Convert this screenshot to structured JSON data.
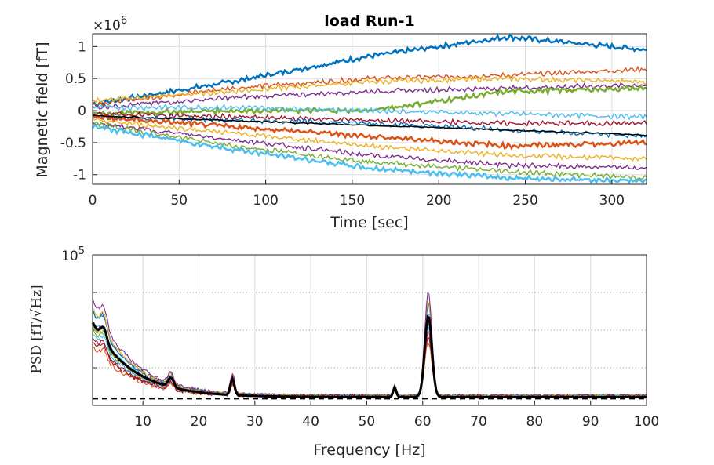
{
  "chart_data": [
    {
      "type": "line",
      "title": "load Run-1",
      "xlabel": "Time [sec]",
      "ylabel": "Magnetic field [fT]",
      "y_exponent_label": "×10",
      "y_exponent_power": "6",
      "xlim": [
        0,
        320
      ],
      "ylim": [
        -1.15,
        1.2
      ],
      "x_ticks": [
        "0",
        "50",
        "100",
        "150",
        "200",
        "250",
        "300"
      ],
      "y_ticks": [
        "-1",
        "-0.5",
        "0",
        "0.5",
        "1"
      ],
      "grid": true,
      "series_colors": [
        "#0072BD",
        "#D95319",
        "#EDB120",
        "#7E2F8E",
        "#77AC30",
        "#4DBEEE",
        "#A2142F",
        "#000000"
      ],
      "series": [
        {
          "x": [
            0,
            80,
            160,
            240,
            320
          ],
          "values": [
            0.1,
            0.45,
            0.85,
            1.15,
            0.95
          ]
        },
        {
          "x": [
            0,
            80,
            160,
            240,
            320
          ],
          "values": [
            0.1,
            0.35,
            0.5,
            0.55,
            0.65
          ]
        },
        {
          "x": [
            0,
            80,
            160,
            240,
            320
          ],
          "values": [
            0.15,
            0.3,
            0.45,
            0.5,
            0.45
          ]
        },
        {
          "x": [
            0,
            80,
            160,
            240,
            320
          ],
          "values": [
            0.05,
            0.2,
            0.3,
            0.35,
            0.4
          ]
        },
        {
          "x": [
            0,
            80,
            160,
            240,
            320
          ],
          "values": [
            -0.05,
            0.0,
            0.0,
            0.3,
            0.35
          ]
        },
        {
          "x": [
            0,
            80,
            160,
            240,
            320
          ],
          "values": [
            0.05,
            0.05,
            0.0,
            -0.05,
            -0.1
          ]
        },
        {
          "x": [
            0,
            80,
            160,
            240,
            320
          ],
          "values": [
            -0.05,
            -0.1,
            -0.15,
            -0.2,
            -0.2
          ]
        },
        {
          "x": [
            0,
            80,
            160,
            240,
            320
          ],
          "values": [
            -0.1,
            -0.15,
            -0.2,
            -0.3,
            -0.4
          ]
        },
        {
          "x": [
            0,
            80,
            160,
            240,
            320
          ],
          "values": [
            -0.1,
            -0.25,
            -0.4,
            -0.55,
            -0.5
          ]
        },
        {
          "x": [
            0,
            80,
            160,
            240,
            320
          ],
          "values": [
            -0.15,
            -0.35,
            -0.55,
            -0.7,
            -0.75
          ]
        },
        {
          "x": [
            0,
            80,
            160,
            240,
            320
          ],
          "values": [
            -0.2,
            -0.45,
            -0.7,
            -0.85,
            -0.9
          ]
        },
        {
          "x": [
            0,
            80,
            160,
            240,
            320
          ],
          "values": [
            -0.2,
            -0.55,
            -0.8,
            -0.95,
            -1.05
          ]
        },
        {
          "x": [
            0,
            80,
            160,
            240,
            320
          ],
          "values": [
            -0.25,
            -0.6,
            -0.9,
            -1.05,
            -1.1
          ]
        }
      ]
    },
    {
      "type": "line",
      "xlabel": "Frequency [Hz]",
      "ylabel": "PSD [fT/√Hz]",
      "y_scale": "log",
      "xlim": [
        1,
        100
      ],
      "y_top_label": "10",
      "y_top_power": "5",
      "x_ticks": [
        "10",
        "20",
        "30",
        "40",
        "50",
        "60",
        "70",
        "80",
        "90",
        "100"
      ],
      "grid": true,
      "reference_line": {
        "style": "dashed",
        "color": "#000000"
      },
      "peaks_hz": [
        3,
        15,
        26,
        55,
        61
      ],
      "mean_series_color": "#000000"
    }
  ]
}
